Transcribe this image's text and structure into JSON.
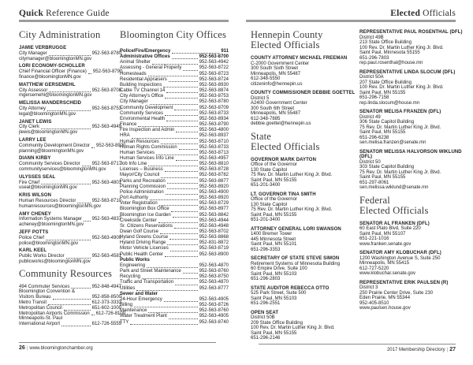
{
  "colors": {
    "header_rule_gray": "#9c9c9c",
    "footer_rule_gray": "#8a8a8a",
    "text_black": "#1c1c1c",
    "heading_gray": "#3a3a3a"
  },
  "page_left": {
    "header_bold": "Quick",
    "header_rest": " Reference Guide",
    "footer": {
      "page": "26",
      "sep": "|",
      "site": "www.bloomingtonchamber.org"
    },
    "city_administration": {
      "heading": "City Administration",
      "staff": [
        {
          "name": "JAMIE VERBRUGGE",
          "title": "City Manager",
          "phone": "952-563-8780",
          "email": "citymanager@bloomingtonMN.gov"
        },
        {
          "name": "LORI ECONOMY-SCHOLLER",
          "title": "Chief Financial Officer (Finance)",
          "phone": "952-563-8790",
          "email": "finance@bloomingtonMN.gov"
        },
        {
          "name": "MATTHEW GERSEMEHL",
          "title": "City Assessor",
          "phone": "952-563-8708",
          "email": "mgersemehl@bloomingtonMN.gov"
        },
        {
          "name": "MELISSA MANDERSCHEID",
          "title": "City Attorney",
          "phone": "952-563-8753",
          "email": "legal@bloomingtonMN.gov"
        },
        {
          "name": "JANET LEWIS",
          "title": "City Clerk",
          "phone": "952-563-4949",
          "email": "jlewis@bloomingtonMN.gov"
        },
        {
          "name": "LARRY LEE",
          "title": "Community Development Director",
          "phone": "952-563-8920",
          "email": "planning@bloomingtonMN.gov"
        },
        {
          "name": "DIANN KIRBY",
          "title": "Community Services Director",
          "phone": "952-563-8717",
          "email": "communityservices@bloomingtonMN.gov"
        },
        {
          "name": "ULYSSES SEAL",
          "title": "Fire Chief",
          "phone": "952-563-4801",
          "email": "useal@bloomingtonMN.gov"
        },
        {
          "name": "KRIS WILSON",
          "title": "Human Resources Director",
          "phone": "952-563-8710",
          "email": "humanresources@bloomingtonMN.gov"
        },
        {
          "name": "AMY CHENEY",
          "title": "Information Systems Manager",
          "phone": "952-563-4837",
          "email": "acheney@bloomingtonMN.gov"
        },
        {
          "name": "JEFF POTTS",
          "title": "Police Chief",
          "phone": "952-563-4900",
          "email": "police@bloomingtonMN.gov"
        },
        {
          "name": "KARL KEEL",
          "title": "Public Works Director",
          "phone": "952-563-4581",
          "email": "publicworks@bloomingtonMN.gov"
        }
      ]
    },
    "community_resources": {
      "heading": "Community Resources",
      "rows": [
        {
          "label": "494 Commuter Services",
          "value": "952-848-4947"
        },
        {
          "label": "Bloomington Convention &",
          "value": "",
          "nolead": true
        },
        {
          "label": "Visitors Bureau",
          "value": "952-858-8500"
        },
        {
          "label": "Metro Transit",
          "value": "612-373-3333"
        },
        {
          "label": "Metropolitan Council",
          "value": "651-602-1000"
        },
        {
          "label": "Metropolitan Airports Commission",
          "value": "612-726-8100"
        },
        {
          "label": "Minneapolis-St. Paul",
          "value": "",
          "nolead": true
        },
        {
          "label": "International Airport",
          "value": "612-726-5555"
        }
      ]
    },
    "city_offices": {
      "heading": "Bloomington City Offices",
      "rows": [
        {
          "label": "Police/Fire/Emergency",
          "value": "911",
          "b": true
        },
        {
          "label": "Administrative Offices",
          "value": "952-563-8700",
          "b": true
        },
        {
          "label": "Animal Shelter",
          "value": "952-563-4942"
        },
        {
          "label": "Assessing - General Property",
          "value": "952-563-8722"
        },
        {
          "label": "Homesteads",
          "value": "952-563-8723"
        },
        {
          "label": "Residential Appraisers",
          "value": "952-563-8724"
        },
        {
          "label": "Building Inspections",
          "value": "952-563-8930"
        },
        {
          "label": "Cable TV Channel 14",
          "value": "952-563-8874"
        },
        {
          "label": "City Attorney's Office",
          "value": "952-563-8753"
        },
        {
          "label": "City Manager",
          "value": "952-563-8780"
        },
        {
          "label": "Community Development",
          "value": "952-563-8709"
        },
        {
          "label": "Community Services",
          "value": "952-563-8733"
        },
        {
          "label": "Environmental Health",
          "value": "952-563-8934"
        },
        {
          "label": "Finance",
          "value": "952-563-8790"
        },
        {
          "label": "Fire Inspection and Admin",
          "value": "952-563-4800"
        },
        {
          "label": "HRA",
          "value": "952-563-8937"
        },
        {
          "label": "Human Resources",
          "value": "952-563-8710"
        },
        {
          "label": "Human Rights Commission",
          "value": "952-563-8733"
        },
        {
          "label": "Human Services",
          "value": "952-563-8713"
        },
        {
          "label": "Human Services Info Line",
          "value": "952-563-4957"
        },
        {
          "label": "Job Info Line",
          "value": "952-563-8810"
        },
        {
          "label": "Licenses – Business",
          "value": "952-563-8728"
        },
        {
          "label": "Mayor/City Council",
          "value": "952-563-8782"
        },
        {
          "label": "Parks and Recreation",
          "value": "952-563-8877"
        },
        {
          "label": "Planning Commission",
          "value": "952-563-8920"
        },
        {
          "label": "Police Administration",
          "value": "952-563-4900"
        },
        {
          "label": "Port Authority",
          "value": "952-563-8920"
        },
        {
          "label": "Voter Registration",
          "value": "952-563-8729"
        },
        {
          "label": "Bloomington Box Office",
          "value": "952-563-8977"
        },
        {
          "label": "Bloomington Ice Garden",
          "value": "952-563-8842"
        },
        {
          "label": "Creekside Center",
          "value": "952-563-4944"
        },
        {
          "label": "Sr. Citizens Reservations",
          "value": "952-563-4948"
        },
        {
          "label": "Dwan Golf Course",
          "value": "952-563-8702"
        },
        {
          "label": "Hyland Greens Course",
          "value": "952-563-8868"
        },
        {
          "label": "Hyland Driving Range",
          "value": "952-831-8872"
        },
        {
          "label": "Motor Vehicle Licenses",
          "value": "952-563-8719"
        },
        {
          "label": "Public Health Center",
          "value": "952-563-8900"
        },
        {
          "label": "Public Works",
          "value": "",
          "b": true,
          "nolead": true
        },
        {
          "label": "Engineering",
          "value": "952-563-4870"
        },
        {
          "label": "Park and Street Maintenance",
          "value": "952-563-8760"
        },
        {
          "label": "Recycling",
          "value": "952-563-8750"
        },
        {
          "label": "Traffic and Transportation",
          "value": "952-563-4870"
        },
        {
          "label": "Utilities",
          "value": "952-563-8777"
        },
        {
          "label": "Sewer and Water",
          "value": "",
          "b": true,
          "nolead": true
        },
        {
          "label": "24-Hour Emergency",
          "value": "952-563-4905"
        },
        {
          "label": "Billing",
          "value": "952-563-8726"
        },
        {
          "label": "Maintenance",
          "value": "952-563-8760"
        },
        {
          "label": "Water Treatment Plant",
          "value": "952-563-4905"
        },
        {
          "label": "TTY",
          "value": "952-563-8740"
        }
      ]
    }
  },
  "page_right": {
    "header_bold": "Elected",
    "header_rest": " Officials",
    "footer": {
      "text": "2017 Membership Directory",
      "sep": "|",
      "page": "27"
    },
    "col3_groups": [
      {
        "heading": "Hennepin County\nElected Officials",
        "blocks": [
          {
            "title": "COUNTY ATTORNEY MICHAEL FREEMAN",
            "body": "C-2000 Government Center\n300 South Sixth Street\nMinneapolis, MN 55487\n612-348-5550\ncitizeninfo@hennepin.us"
          },
          {
            "title": "COUNTY COMMISSIONER DEBBIE GOETTEL",
            "body": "District 5\nA2400 Government Center\n300 South 6th Street\nMinneapolis, MN 55487\n612-348-7885\ndebbie.goettel@hennepin.us"
          }
        ]
      },
      {
        "heading": "State\nElected Officials",
        "blocks": [
          {
            "title": "GOVERNOR MARK DAYTON",
            "body": "Office of the Governor\n130 State Capitol\n75 Rev. Dr. Martin Luther King Jr. Blvd.\nSaint Paul, MN 55155\n651-201-3400"
          },
          {
            "title": "LT. GOVERNOR TINA SMITH",
            "body": "Office of the Governor\n130 State Capitol\n75 Rev. Dr. Martin Luther King Jr. Blvd.\nSaint Paul, MN 55155\n651-201-3400"
          },
          {
            "title": "ATTORNEY GENERAL LORI SWANSON",
            "body": "1400 Bremer Tower\n445 Minnesota Street\nSaint Paul, MN 55101\n651-296-3353"
          },
          {
            "title": "SECRETARY OF STATE STEVE SIMON",
            "body": "Retirement Systems of Minnesota Building\n60 Empire Drive, Suite 100\nSaint Paul, MN 55103\n651-296-2803"
          },
          {
            "title": "STATE AUDITOR REBECCA OTTO",
            "body": "525 Park Street, Suite 500\nSaint Paul, MN 55103\n651-296-2551"
          },
          {
            "title": "OPEN SEAT",
            "body": "District 50B\n209 State Office Building\n100 Rev. Dr. Martin Luther King Jr. Blvd.\nSaint Paul, MN 55155\n651-296-2146"
          }
        ]
      }
    ],
    "col4_groups": [
      {
        "heading": "",
        "blocks": [
          {
            "title": "REPRESENTATIVE PAUL ROSENTHAL (DFL)",
            "body": "District 49B\n213 State Office Building\n100 Rev. Dr. Martin Luther King Jr. Blvd.\nSaint Paul, Minnesota 55155\n651-296-7803\nrep.paul.rosenthal@house.mn"
          },
          {
            "title": "REPRESENTATIVE LINDA SLOCUM (DFL)",
            "body": "District 50A\n207 State Office Building\n100 Rev. Dr. Martin Luther King Jr. Blvd.\nSaint Paul, MN 55155\n651-296-7158\nrep.linda.slocum@house.mn"
          },
          {
            "title": "SENATOR MELISA FRANZEN (DFL)",
            "body": "District 49\n306 State Capitol Building\n75 Rev. Dr. Martin Luther King Jr. Blvd.\nSaint Paul, MN 55155\n651-296-6238\nsen.melisa.franzen@senate.mn"
          },
          {
            "title": "SENATOR MELISSA HALVORSON WIKLUND (DFL)",
            "body": "District 50\n303 State Capitol Building\n75 Rev. Dr. Martin Luther King Jr. Blvd.\nSaint Paul, MN 55155\n651-297-8061\nsen.melissa.wiklund@senate.mn"
          }
        ]
      },
      {
        "heading": "Federal\nElected Officials",
        "blocks": [
          {
            "title": "SENATOR AL FRANKEN (DFL)",
            "body": "60 East Plato Blvd, Suite 220\nSaint Paul, MN 55107\n651-221-1016\nwww.franken.senate.gov"
          },
          {
            "title": "SENATOR AMY KLOBUCHAR (DFL)",
            "body": "1200 Washington Avenue S, Suite 250\nMinneapolis, MN 55415\n612-727-5220\nwww.klobuchar.senate.gov"
          },
          {
            "title": "REPRESENTATIVE ERIK PAULSEN (R)",
            "body": "District 3\n250 Prairie Center Drive, Suite 230\nEden Prairie, MN 55344\n952-405-8510\nwww.paulsen.house.gov"
          }
        ]
      }
    ]
  }
}
